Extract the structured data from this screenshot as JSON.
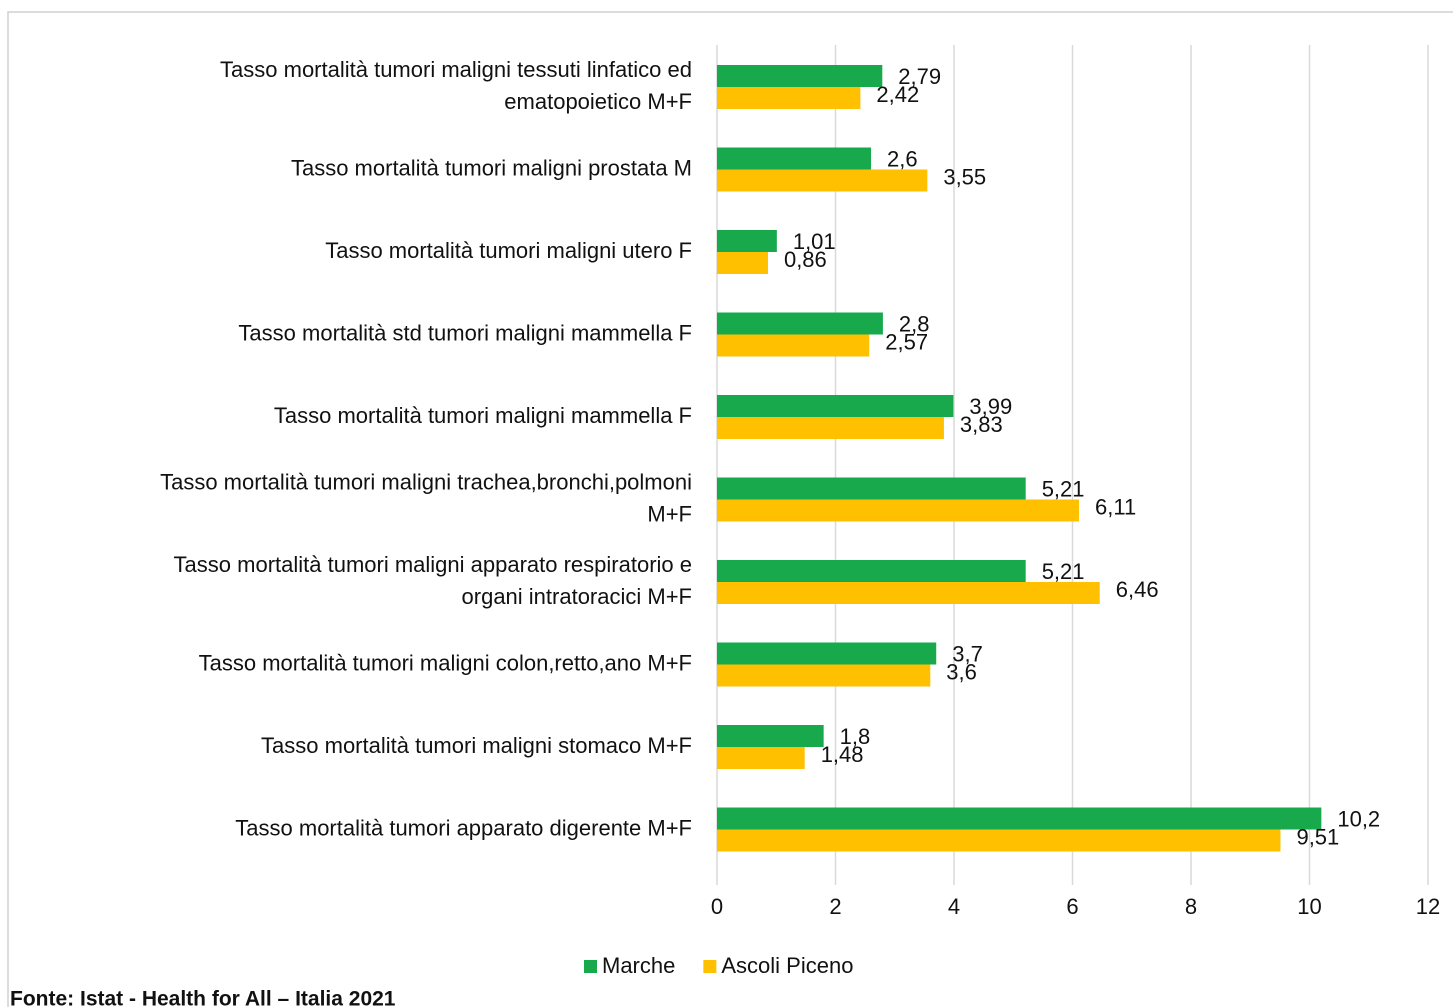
{
  "chart_data": {
    "type": "bar",
    "orientation": "horizontal",
    "categories": [
      "Tasso mortalità tumori maligni tessuti linfatico ed\nematopoietico M+F",
      "Tasso mortalità tumori maligni prostata M",
      "Tasso mortalità tumori maligni utero F",
      "Tasso mortalità std tumori maligni mammella F",
      "Tasso mortalità tumori maligni mammella F",
      "Tasso mortalità tumori maligni trachea,bronchi,polmoni\nM+F",
      "Tasso mortalità tumori maligni apparato respiratorio e\norgani intratoracici M+F",
      "Tasso mortalità tumori maligni colon,retto,ano M+F",
      "Tasso mortalità tumori maligni stomaco M+F",
      "Tasso mortalità tumori apparato digerente M+F"
    ],
    "series": [
      {
        "name": "Marche",
        "color": "#17a94b",
        "values": [
          2.79,
          2.6,
          1.01,
          2.8,
          3.99,
          5.21,
          5.21,
          3.7,
          1.8,
          10.2
        ],
        "value_labels": [
          "2,79",
          "2,6",
          "1,01",
          "2,8",
          "3,99",
          "5,21",
          "5,21",
          "3,7",
          "1,8",
          "10,2"
        ]
      },
      {
        "name": "Ascoli Piceno",
        "color": "#ffc000",
        "values": [
          2.42,
          3.55,
          0.86,
          2.57,
          3.83,
          6.11,
          6.46,
          3.6,
          1.48,
          9.51
        ],
        "value_labels": [
          "2,42",
          "3,55",
          "0,86",
          "2,57",
          "3,83",
          "6,11",
          "6,46",
          "3,6",
          "1,48",
          "9,51"
        ]
      }
    ],
    "xlim": [
      0,
      12
    ],
    "xticks": [
      0,
      2,
      4,
      6,
      8,
      10,
      12
    ],
    "grid": true,
    "legend": "bottom",
    "source": "Fonte: Istat - Health for All – Italia 2021"
  }
}
